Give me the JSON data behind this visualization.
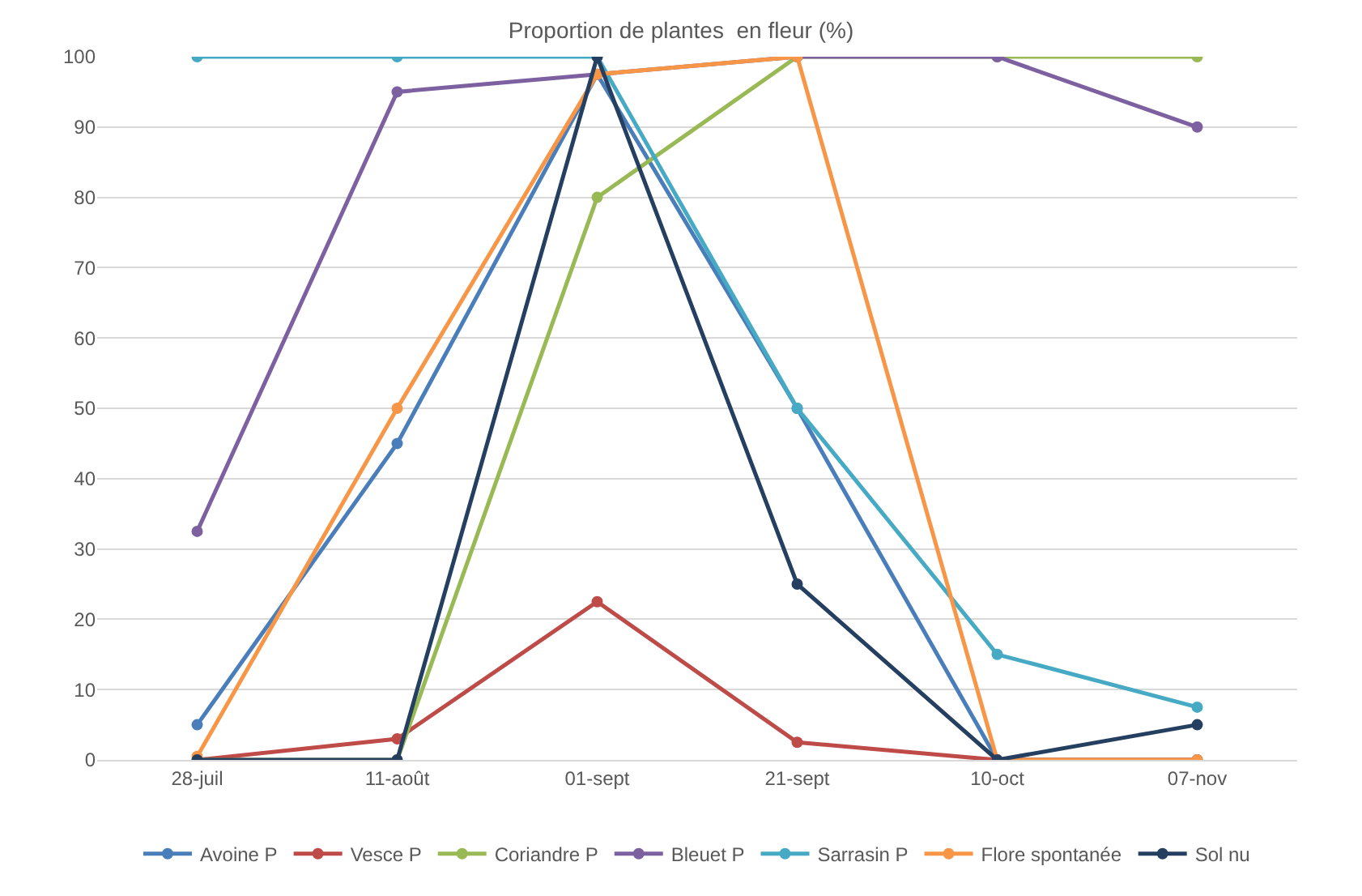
{
  "chart_data": {
    "type": "line",
    "title": "Proportion de plantes  en fleur (%)",
    "categories": [
      "28-juil",
      "11-août",
      "01-sept",
      "21-sept",
      "10-oct",
      "07-nov"
    ],
    "series": [
      {
        "name": "Avoine P",
        "color": "#4a7ebb",
        "values": [
          5,
          45,
          97.5,
          50,
          0,
          0
        ]
      },
      {
        "name": "Vesce P",
        "color": "#be4b48",
        "values": [
          0,
          3,
          22.5,
          2.5,
          0,
          0
        ]
      },
      {
        "name": "Coriandre P",
        "color": "#98b954",
        "values": [
          0,
          0,
          80,
          100,
          100,
          100
        ]
      },
      {
        "name": "Bleuet P",
        "color": "#7d60a0",
        "values": [
          32.5,
          95,
          97.5,
          100,
          100,
          90
        ]
      },
      {
        "name": "Sarrasin P",
        "color": "#46aac5",
        "values": [
          100,
          100,
          100,
          50,
          15,
          7.5
        ]
      },
      {
        "name": "Flore spontanée",
        "color": "#f79646",
        "values": [
          0.5,
          50,
          97.5,
          100,
          0,
          0
        ]
      },
      {
        "name": "Sol nu",
        "color": "#243f60",
        "values": [
          0,
          0,
          100,
          25,
          0,
          5
        ]
      }
    ],
    "ylim": [
      0,
      100
    ],
    "yticks": [
      0,
      10,
      20,
      30,
      40,
      50,
      60,
      70,
      80,
      90,
      100
    ],
    "grid": "y",
    "legend": "bottom",
    "marker": "circle",
    "line_style": "solid"
  }
}
